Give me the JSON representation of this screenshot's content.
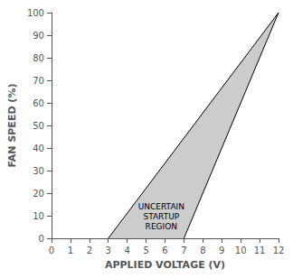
{
  "chart_data": {
    "type": "line",
    "xlabel": "APPLIED VOLTAGE (V)",
    "ylabel": "FAN SPEED (%)",
    "xlim": [
      0,
      12
    ],
    "ylim": [
      0,
      100
    ],
    "xticks": [
      0,
      1,
      2,
      3,
      4,
      5,
      6,
      7,
      8,
      9,
      10,
      11,
      12
    ],
    "yticks": [
      0,
      10,
      20,
      30,
      40,
      50,
      60,
      70,
      80,
      90,
      100
    ],
    "grid": false,
    "series": [
      {
        "type": "area",
        "color": "#cccccc",
        "x": [
          3,
          12,
          7
        ],
        "values": [
          0,
          100,
          0
        ]
      },
      {
        "type": "line",
        "color": "#000000",
        "x": [
          3,
          12
        ],
        "values": [
          0,
          100
        ]
      },
      {
        "type": "line",
        "color": "#000000",
        "x": [
          7,
          12
        ],
        "values": [
          0,
          100
        ]
      }
    ],
    "annotations": [
      {
        "text": "UNCERTAIN\nSTARTUP\nREGION",
        "x": 5.8,
        "y": 3
      }
    ]
  }
}
